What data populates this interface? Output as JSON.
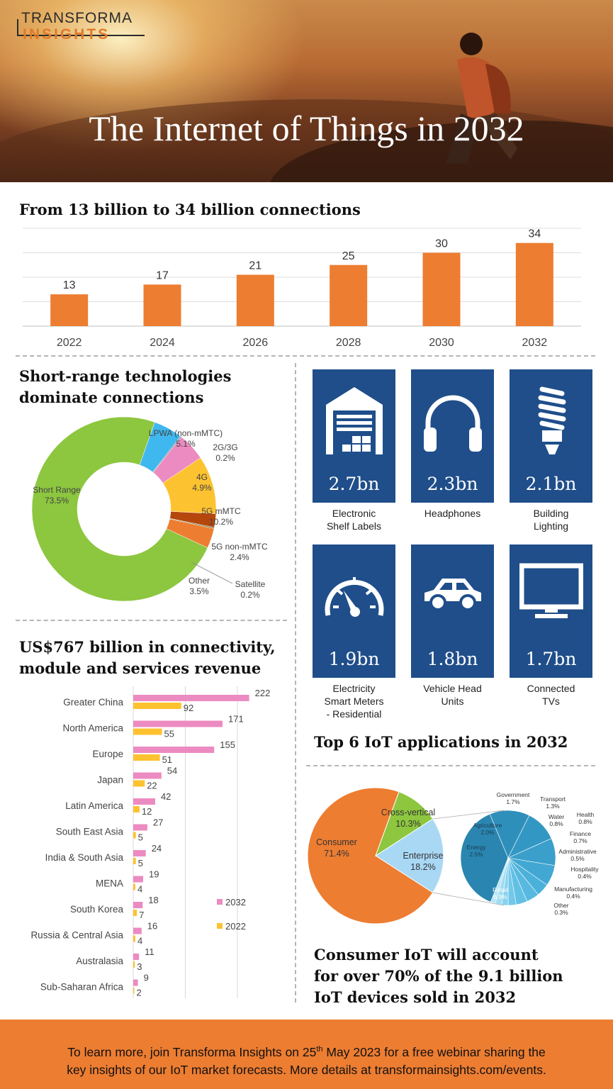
{
  "header": {
    "logo_line1": "TRANSFORMA",
    "logo_line2": "INSIGHTS",
    "title": "The Internet of Things in 2032"
  },
  "colors": {
    "orange": "#ed7d31",
    "blue_tile": "#1f4e8a",
    "pink": "#ec8bc1",
    "yellow": "#fdc22f"
  },
  "section_connections": {
    "heading": "From 13 billion to 34 billion connections"
  },
  "section_tech": {
    "heading_line1": "Short-range technologies",
    "heading_line2": "dominate connections"
  },
  "section_revenue": {
    "heading_line1": "US$767 billion in connectivity,",
    "heading_line2": "module and services revenue"
  },
  "section_apps": {
    "heading": "Top 6 IoT applications in 2032"
  },
  "section_devices": {
    "line1": "Consumer IoT will account",
    "line2": "for over 70% of the 9.1 billion",
    "line3": "IoT devices sold in 2032"
  },
  "applications": [
    {
      "value": "2.7bn",
      "label_line1": "Electronic",
      "label_line2": "Shelf Labels",
      "label_line3": "",
      "icon": "warehouse-icon"
    },
    {
      "value": "2.3bn",
      "label_line1": "Headphones",
      "label_line2": "",
      "label_line3": "",
      "icon": "headphones-icon"
    },
    {
      "value": "2.1bn",
      "label_line1": "Building",
      "label_line2": "Lighting",
      "label_line3": "",
      "icon": "lightbulb-icon"
    },
    {
      "value": "1.9bn",
      "label_line1": "Electricity",
      "label_line2": "Smart Meters",
      "label_line3": "- Residential",
      "icon": "gauge-icon"
    },
    {
      "value": "1.8bn",
      "label_line1": "Vehicle Head",
      "label_line2": "Units",
      "label_line3": "",
      "icon": "car-icon"
    },
    {
      "value": "1.7bn",
      "label_line1": "Connected",
      "label_line2": "TVs",
      "label_line3": "",
      "icon": "tv-icon"
    }
  ],
  "footer": {
    "part1": "To learn more, join Transforma Insights on 25",
    "sup": "th",
    "part2": " May 2023 for a free webinar sharing the",
    "line2": "key insights of our IoT market forecasts. More details at transformainsights.com/events."
  },
  "chart_data": [
    {
      "id": "connections",
      "type": "bar",
      "categories": [
        "2022",
        "2024",
        "2026",
        "2028",
        "2030",
        "2032"
      ],
      "values": [
        13,
        17,
        21,
        25,
        30,
        34
      ],
      "ylim": [
        0,
        40
      ],
      "grid": true,
      "color": "#ed7d31"
    },
    {
      "id": "technologies",
      "type": "pie",
      "donut": true,
      "labels": [
        "Short Range",
        "LPWA (non-mMTC)",
        "2G/3G",
        "4G",
        "5G mMTC",
        "5G non-mMTC",
        "Satellite",
        "Other"
      ],
      "values": [
        73.5,
        5.1,
        0.2,
        4.9,
        10.2,
        2.4,
        0.2,
        3.5
      ],
      "display": [
        "73.5%",
        "5.1%",
        "0.2%",
        "4.9%",
        "10.2%",
        "2.4%",
        "0.2%",
        "3.5%"
      ],
      "colors": [
        "#8dc63f",
        "#3fb8ef",
        "#8c8c8c",
        "#ec8bc1",
        "#fdc22f",
        "#b5470c",
        "#6b6b2a",
        "#ed7d31"
      ]
    },
    {
      "id": "revenue",
      "type": "bar",
      "orientation": "horizontal",
      "categories": [
        "Greater China",
        "North America",
        "Europe",
        "Japan",
        "Latin America",
        "South East Asia",
        "India & South Asia",
        "MENA",
        "South Korea",
        "Russia & Central Asia",
        "Australasia",
        "Sub-Saharan Africa"
      ],
      "series": [
        {
          "name": "2032",
          "values": [
            222,
            171,
            155,
            54,
            42,
            27,
            24,
            19,
            18,
            16,
            11,
            9
          ],
          "color": "#ec8bc1"
        },
        {
          "name": "2022",
          "values": [
            92,
            55,
            51,
            22,
            12,
            5,
            5,
            4,
            7,
            4,
            3,
            2
          ],
          "color": "#fdc22f"
        }
      ],
      "xlim": [
        0,
        250
      ],
      "legend": "right"
    },
    {
      "id": "devices",
      "type": "pie",
      "labels": [
        "Consumer",
        "Cross-vertical",
        "Enterprise"
      ],
      "values": [
        71.4,
        10.3,
        18.2
      ],
      "display": [
        "71.4%",
        "10.3%",
        "18.2%"
      ],
      "colors": [
        "#ed7d31",
        "#8dc63f",
        "#a9d8f5"
      ],
      "breakdown": {
        "of": "Enterprise",
        "labels": [
          "Retail",
          "Energy",
          "Agriculture",
          "Government",
          "Transport",
          "Water",
          "Health",
          "Finance",
          "Administrative",
          "Hospitality",
          "Manufacturing",
          "Other"
        ],
        "values": [
          6.9,
          2.5,
          2.0,
          1.7,
          1.3,
          0.8,
          0.8,
          0.7,
          0.5,
          0.4,
          0.4,
          0.3
        ],
        "display": [
          "6.9%",
          "2.5%",
          "2.0%",
          "1.7%",
          "1.3%",
          "0.8%",
          "0.8%",
          "0.7%",
          "0.5%",
          "0.4%",
          "0.4%",
          "0.3%"
        ]
      }
    }
  ]
}
